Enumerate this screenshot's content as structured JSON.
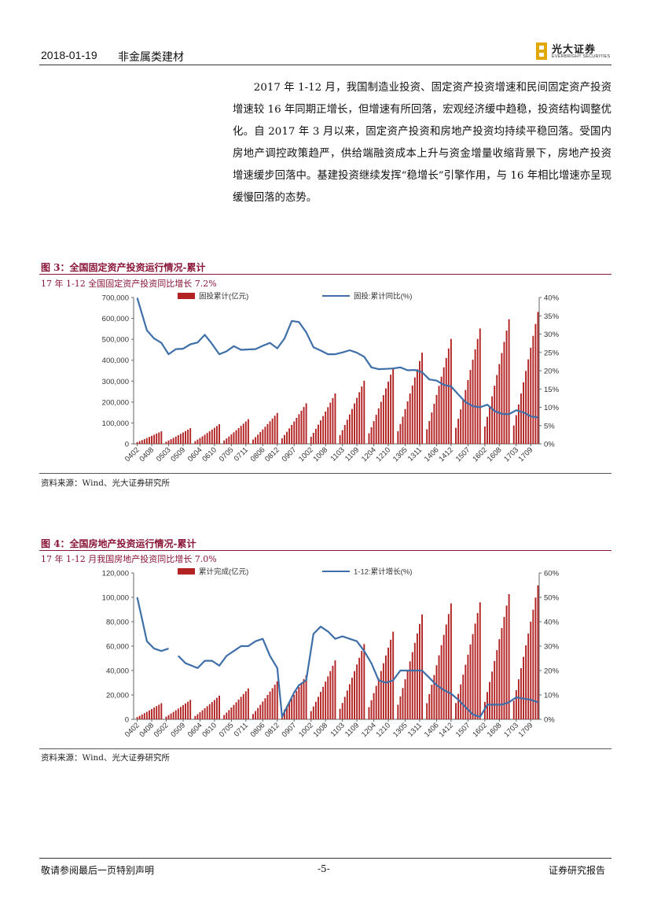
{
  "header": {
    "date": "2018-01-19",
    "sector": "非金属类建材",
    "logo_cn": "光大证券",
    "logo_en": "EVERBRIGHT SECURITIES"
  },
  "body": {
    "paragraph": "2017 年 1-12 月，我国制造业投资、固定资产投资增速和民间固定资产投资增速较 16 年同期正增长，但增速有所回落，宏观经济缓中趋稳，投资结构调整优化。自 2017 年 3 月以来，固定资产投资和房地产投资均持续平稳回落。受国内房地产调控政策趋严，供给端融资成本上升与资金增量收缩背景下，房地产投资增速缓步回落中。基建投资继续发挥“稳增长”引擎作用，与 16 年相比增速亦呈现缓慢回落的态势。"
  },
  "figure3": {
    "title": "图 3：全国固定资产投资运行情况-累计",
    "subtitle": "17 年 1-12 全国固定资产投资同比增长 7.2%",
    "source": "资料来源：Wind、光大证券研究所"
  },
  "figure4": {
    "title": "图 4：全国房地产投资运行情况-累计",
    "subtitle": "17 年 1-12 月我国房地产投资同比增长 7.0%",
    "source": "资料来源：Wind、光大证券研究所"
  },
  "footer": {
    "left": "敬请参阅最后一页特别声明",
    "center": "-5-",
    "right": "证券研究报告"
  },
  "colors": {
    "bar": "#b22222",
    "line": "#3e6fa8",
    "accent": "#8a1538",
    "logo": "#e0a800"
  },
  "chart_data": [
    {
      "type": "bar",
      "legend_placement": "top",
      "series": [
        {
          "name": "固投累计(亿元)",
          "type": "bar",
          "axis": "left",
          "start_year": 2004,
          "end_year": 2017,
          "year_end_values": [
            60000,
            75000,
            94000,
            118000,
            148000,
            194000,
            241000,
            302000,
            364000,
            436000,
            502000,
            552000,
            596000,
            631000
          ]
        },
        {
          "name": "固投:累计同比(%)",
          "type": "line",
          "axis": "right",
          "points": [
            {
              "x": "0402",
              "y": 39.9
            },
            {
              "x": "0406",
              "y": 31
            },
            {
              "x": "0409",
              "y": 28.8
            },
            {
              "x": "0412",
              "y": 27.6
            },
            {
              "x": "0503",
              "y": 24.5
            },
            {
              "x": "0506",
              "y": 25.9
            },
            {
              "x": "0509",
              "y": 26
            },
            {
              "x": "0512",
              "y": 27.2
            },
            {
              "x": "0603",
              "y": 27.7
            },
            {
              "x": "0606",
              "y": 29.8
            },
            {
              "x": "0609",
              "y": 27.3
            },
            {
              "x": "0612",
              "y": 24.5
            },
            {
              "x": "0703",
              "y": 25.3
            },
            {
              "x": "0706",
              "y": 26.7
            },
            {
              "x": "0709",
              "y": 25.7
            },
            {
              "x": "0712",
              "y": 25.8
            },
            {
              "x": "0803",
              "y": 25.9
            },
            {
              "x": "0806",
              "y": 26.8
            },
            {
              "x": "0809",
              "y": 27.6
            },
            {
              "x": "0812",
              "y": 26.1
            },
            {
              "x": "0903",
              "y": 28.8
            },
            {
              "x": "0906",
              "y": 33.6
            },
            {
              "x": "0909",
              "y": 33.3
            },
            {
              "x": "0912",
              "y": 30.5
            },
            {
              "x": "1003",
              "y": 26.4
            },
            {
              "x": "1006",
              "y": 25.5
            },
            {
              "x": "1009",
              "y": 24.5
            },
            {
              "x": "1012",
              "y": 24.5
            },
            {
              "x": "1103",
              "y": 25
            },
            {
              "x": "1106",
              "y": 25.6
            },
            {
              "x": "1109",
              "y": 24.9
            },
            {
              "x": "1112",
              "y": 23.8
            },
            {
              "x": "1203",
              "y": 20.9
            },
            {
              "x": "1206",
              "y": 20.4
            },
            {
              "x": "1209",
              "y": 20.5
            },
            {
              "x": "1212",
              "y": 20.6
            },
            {
              "x": "1303",
              "y": 20.9
            },
            {
              "x": "1306",
              "y": 20.1
            },
            {
              "x": "1309",
              "y": 20.2
            },
            {
              "x": "1312",
              "y": 19.6
            },
            {
              "x": "1403",
              "y": 17.6
            },
            {
              "x": "1406",
              "y": 17.3
            },
            {
              "x": "1409",
              "y": 16.1
            },
            {
              "x": "1412",
              "y": 15.7
            },
            {
              "x": "1503",
              "y": 13.5
            },
            {
              "x": "1506",
              "y": 11.4
            },
            {
              "x": "1509",
              "y": 10.3
            },
            {
              "x": "1512",
              "y": 10
            },
            {
              "x": "1603",
              "y": 10.7
            },
            {
              "x": "1606",
              "y": 9
            },
            {
              "x": "1609",
              "y": 8.2
            },
            {
              "x": "1612",
              "y": 8.1
            },
            {
              "x": "1703",
              "y": 9.2
            },
            {
              "x": "1706",
              "y": 8.6
            },
            {
              "x": "1709",
              "y": 7.5
            },
            {
              "x": "1712",
              "y": 7.2
            }
          ]
        }
      ],
      "x_tick_labels": [
        "0402",
        "0408",
        "0503",
        "0509",
        "0604",
        "0610",
        "0705",
        "0711",
        "0806",
        "0812",
        "0907",
        "1002",
        "1008",
        "1103",
        "1109",
        "1204",
        "1210",
        "1305",
        "1311",
        "1406",
        "1412",
        "1507",
        "1602",
        "1608",
        "1703",
        "1709"
      ],
      "y_left_ticks": [
        "0",
        "100,000",
        "200,000",
        "300,000",
        "400,000",
        "500,000",
        "600,000",
        "700,000"
      ],
      "y_right_ticks": [
        "0%",
        "5%",
        "10%",
        "15%",
        "20%",
        "25%",
        "30%",
        "35%",
        "40%"
      ],
      "y_left_range": [
        0,
        700000
      ],
      "y_right_range": [
        0,
        40
      ]
    },
    {
      "type": "bar",
      "legend_placement": "top",
      "series": [
        {
          "name": "累计完成(亿元)",
          "type": "bar",
          "axis": "left",
          "start_year": 2004,
          "end_year": 2017,
          "year_end_values": [
            13200,
            15900,
            19400,
            25300,
            31200,
            36200,
            48300,
            61700,
            71800,
            86000,
            95000,
            95900,
            102600,
            109800
          ]
        },
        {
          "name": "1-12:累计增长(%)",
          "type": "line",
          "axis": "right",
          "points": [
            {
              "x": "0402",
              "y": 50
            },
            {
              "x": "0404",
              "y": 41
            },
            {
              "x": "0406",
              "y": 32
            },
            {
              "x": "0409",
              "y": 29
            },
            {
              "x": "0412",
              "y": 28
            },
            {
              "x": "0503",
              "y": 29
            },
            {
              "x": "0504",
              "y": null
            },
            {
              "x": "0507",
              "y": 26
            },
            {
              "x": "0510",
              "y": 23
            },
            {
              "x": "0603",
              "y": 21
            },
            {
              "x": "0606",
              "y": 24
            },
            {
              "x": "0609",
              "y": 24
            },
            {
              "x": "0612",
              "y": 22
            },
            {
              "x": "0703",
              "y": 26
            },
            {
              "x": "0706",
              "y": 28
            },
            {
              "x": "0709",
              "y": 30
            },
            {
              "x": "0712",
              "y": 30
            },
            {
              "x": "0803",
              "y": 32
            },
            {
              "x": "0806",
              "y": 33
            },
            {
              "x": "0809",
              "y": 26
            },
            {
              "x": "0812",
              "y": 21
            },
            {
              "x": "0902",
              "y": 1
            },
            {
              "x": "0905",
              "y": 7
            },
            {
              "x": "0907",
              "y": 11
            },
            {
              "x": "0909",
              "y": 14
            },
            {
              "x": "0912",
              "y": 16
            },
            {
              "x": "1003",
              "y": 35
            },
            {
              "x": "1006",
              "y": 38
            },
            {
              "x": "1009",
              "y": 36
            },
            {
              "x": "1012",
              "y": 33
            },
            {
              "x": "1103",
              "y": 34
            },
            {
              "x": "1106",
              "y": 33
            },
            {
              "x": "1109",
              "y": 32
            },
            {
              "x": "1112",
              "y": 28
            },
            {
              "x": "1203",
              "y": 23
            },
            {
              "x": "1206",
              "y": 16
            },
            {
              "x": "1209",
              "y": 15
            },
            {
              "x": "1212",
              "y": 16
            },
            {
              "x": "1303",
              "y": 20
            },
            {
              "x": "1306",
              "y": 20
            },
            {
              "x": "1309",
              "y": 20
            },
            {
              "x": "1312",
              "y": 20
            },
            {
              "x": "1403",
              "y": 17
            },
            {
              "x": "1406",
              "y": 14
            },
            {
              "x": "1409",
              "y": 12
            },
            {
              "x": "1412",
              "y": 10.5
            },
            {
              "x": "1503",
              "y": 8
            },
            {
              "x": "1506",
              "y": 5
            },
            {
              "x": "1509",
              "y": 2
            },
            {
              "x": "1512",
              "y": 1
            },
            {
              "x": "1603",
              "y": 6
            },
            {
              "x": "1606",
              "y": 6
            },
            {
              "x": "1609",
              "y": 6
            },
            {
              "x": "1612",
              "y": 7
            },
            {
              "x": "1703",
              "y": 9
            },
            {
              "x": "1706",
              "y": 8.5
            },
            {
              "x": "1709",
              "y": 8
            },
            {
              "x": "1712",
              "y": 7
            }
          ]
        }
      ],
      "x_tick_labels": [
        "0402",
        "0408",
        "0502",
        "0509",
        "0604",
        "0610",
        "0705",
        "0711",
        "0806",
        "0812",
        "0907",
        "1002",
        "1008",
        "1103",
        "1109",
        "1204",
        "1210",
        "1305",
        "1311",
        "1406",
        "1412",
        "1507",
        "1602",
        "1608",
        "1703",
        "1709"
      ],
      "y_left_ticks": [
        "0",
        "20,000",
        "40,000",
        "60,000",
        "80,000",
        "100,000",
        "120,000"
      ],
      "y_right_ticks": [
        "0%",
        "10%",
        "20%",
        "30%",
        "40%",
        "50%",
        "60%"
      ],
      "y_left_range": [
        0,
        120000
      ],
      "y_right_range": [
        0,
        60
      ]
    }
  ]
}
